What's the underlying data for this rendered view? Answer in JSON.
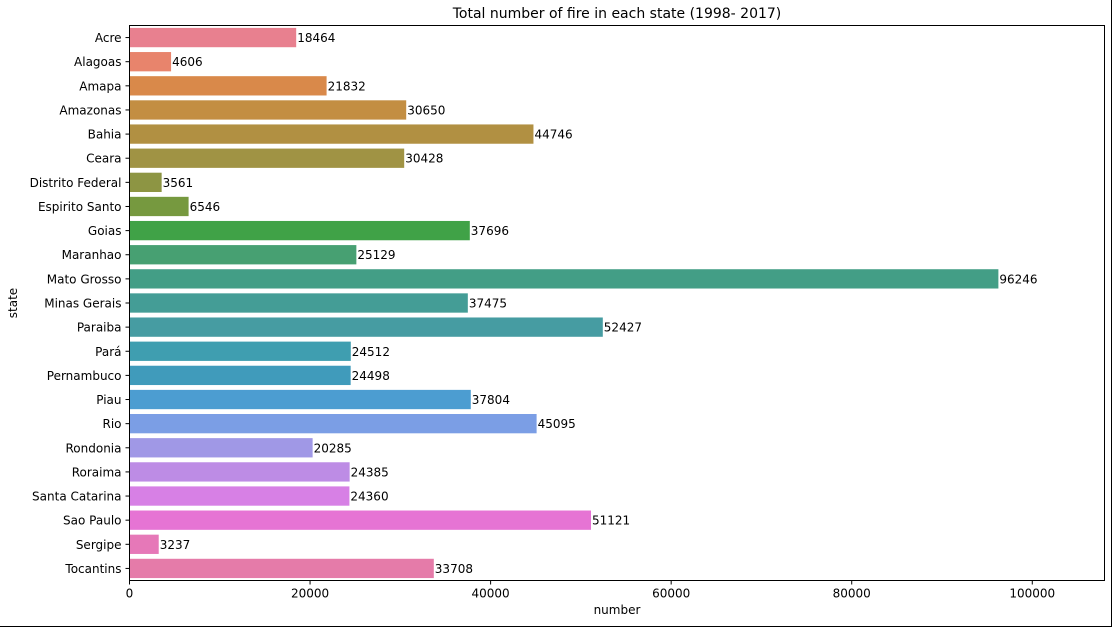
{
  "chart_data": {
    "type": "bar",
    "orientation": "horizontal",
    "title": "Total number of fire in each state (1998- 2017)",
    "xlabel": "number",
    "ylabel": "state",
    "xlim": [
      0,
      108000
    ],
    "x_ticks": [
      0,
      20000,
      40000,
      60000,
      80000,
      100000
    ],
    "x_tick_labels": [
      "0",
      "20000",
      "40000",
      "60000",
      "80000",
      "100000"
    ],
    "grid": false,
    "legend": false,
    "categories": [
      "Acre",
      "Alagoas",
      "Amapa",
      "Amazonas",
      "Bahia",
      "Ceara",
      "Distrito Federal",
      "Espirito Santo",
      "Goias",
      "Maranhao",
      "Mato Grosso",
      "Minas Gerais",
      "Paraiba",
      "Pará",
      "Pernambuco",
      "Piau",
      "Rio",
      "Rondonia",
      "Roraima",
      "Santa Catarina",
      "Sao Paulo",
      "Sergipe",
      "Tocantins"
    ],
    "values": [
      18464,
      4606,
      21832,
      30650,
      44746,
      30428,
      3561,
      6546,
      37696,
      25129,
      96246,
      37475,
      52427,
      24512,
      24498,
      37804,
      45095,
      20285,
      24385,
      24360,
      51121,
      3237,
      33708
    ],
    "data_labels": [
      "18464",
      "4606",
      "21832",
      "30650",
      "44746",
      "30428",
      "3561",
      "6546",
      "37696",
      "25129",
      "96246",
      "37475",
      "52427",
      "24512",
      "24498",
      "37804",
      "45095",
      "20285",
      "24385",
      "24360",
      "51121",
      "3237",
      "33708"
    ],
    "colors": [
      "#e8808f",
      "#e8846c",
      "#d9894a",
      "#c38e42",
      "#b19042",
      "#a09344",
      "#8d9543",
      "#76993f",
      "#40a247",
      "#47a072",
      "#439e86",
      "#449d96",
      "#469ca2",
      "#3f9eb0",
      "#409bbb",
      "#4c9dd1",
      "#7b9ee5",
      "#a098e6",
      "#bd8ce5",
      "#d780e5",
      "#e674d4",
      "#e678b8",
      "#e57ba9"
    ]
  }
}
